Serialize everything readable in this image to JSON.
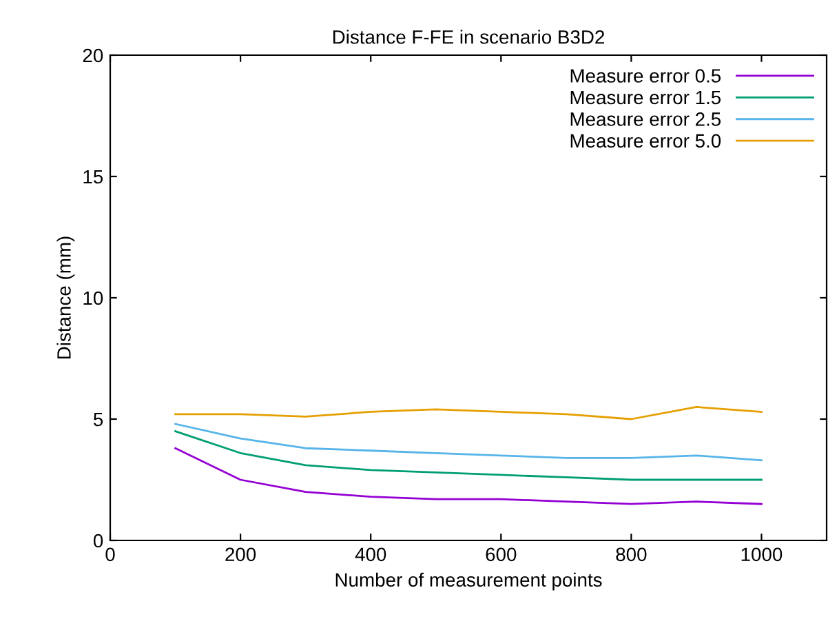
{
  "chart_data": {
    "type": "line",
    "title": "Distance F-FE in scenario B3D2",
    "xlabel": "Number of measurement points",
    "ylabel": "Distance (mm)",
    "x": [
      100,
      200,
      300,
      400,
      500,
      600,
      700,
      800,
      900,
      1000
    ],
    "series": [
      {
        "name": "Measure error 0.5",
        "color": "#9400d3",
        "values": [
          3.8,
          2.5,
          2.0,
          1.8,
          1.7,
          1.7,
          1.6,
          1.5,
          1.6,
          1.5
        ]
      },
      {
        "name": "Measure error 1.5",
        "color": "#009e73",
        "values": [
          4.5,
          3.6,
          3.1,
          2.9,
          2.8,
          2.7,
          2.6,
          2.5,
          2.5,
          2.5
        ]
      },
      {
        "name": "Measure error 2.5",
        "color": "#56b4e9",
        "values": [
          4.8,
          4.2,
          3.8,
          3.7,
          3.6,
          3.5,
          3.4,
          3.4,
          3.5,
          3.3
        ]
      },
      {
        "name": "Measure error 5.0",
        "color": "#e69f00",
        "values": [
          5.2,
          5.2,
          5.1,
          5.3,
          5.4,
          5.3,
          5.2,
          5.0,
          5.5,
          5.3
        ]
      }
    ],
    "xlim": [
      0,
      1100
    ],
    "xticks": [
      0,
      200,
      400,
      600,
      800,
      1000
    ],
    "ylim": [
      0,
      20
    ],
    "yticks": [
      0,
      5,
      10,
      15,
      20
    ],
    "grid": false,
    "legend": "top right",
    "marker": "none",
    "line_style": "solid"
  }
}
